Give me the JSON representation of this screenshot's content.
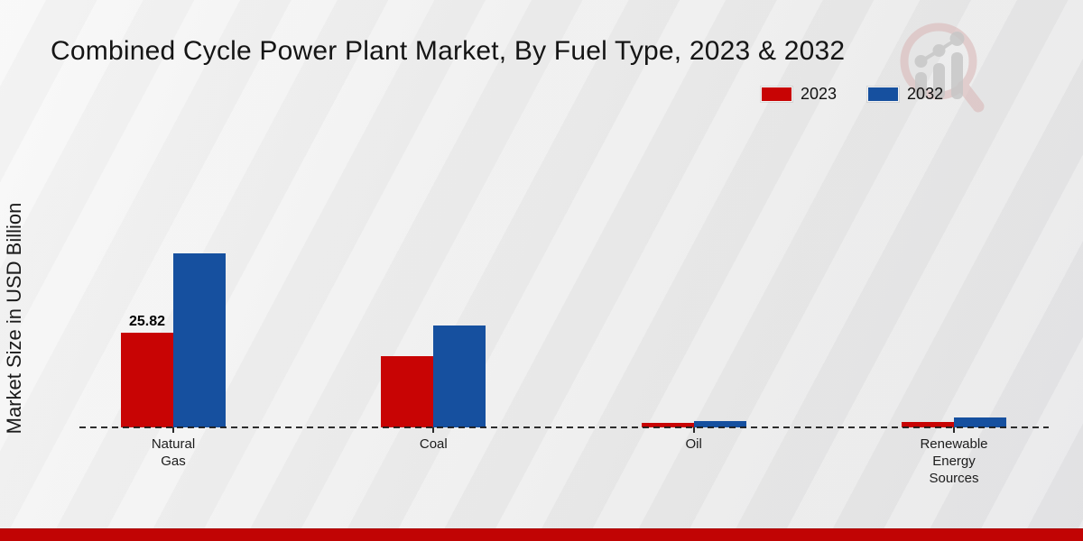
{
  "title": "Combined Cycle Power Plant Market, By Fuel Type, 2023 & 2032",
  "ylabel": "Market Size in USD Billion",
  "legend": [
    {
      "label": "2023",
      "color": "#c80404"
    },
    {
      "label": "2032",
      "color": "#16509f"
    }
  ],
  "colors": {
    "series_2023": "#c80404",
    "series_2032": "#16509f",
    "footer_bar": "#c10404",
    "baseline": "#1c1c1c",
    "background": "#ebebeb"
  },
  "icons": {
    "watermark": "magnifier-bar-chart-logo"
  },
  "chart_data": {
    "type": "bar",
    "categories": [
      "Natural Gas",
      "Coal",
      "Oil",
      "Renewable Energy Sources"
    ],
    "category_label_lines": [
      [
        "Natural",
        "Gas"
      ],
      [
        "Coal"
      ],
      [
        "Oil"
      ],
      [
        "Renewable",
        "Energy",
        "Sources"
      ]
    ],
    "series": [
      {
        "name": "2023",
        "color": "#c80404",
        "values": [
          25.82,
          19.4,
          1.2,
          1.5
        ]
      },
      {
        "name": "2032",
        "color": "#16509f",
        "values": [
          47.5,
          27.8,
          1.6,
          2.8
        ]
      }
    ],
    "data_labels": [
      {
        "series": "2023",
        "category": "Natural Gas",
        "text": "25.82"
      }
    ],
    "title": "Combined Cycle Power Plant Market, By Fuel Type, 2023 & 2032",
    "xlabel": "",
    "ylabel": "Market Size in USD Billion",
    "ylim": [
      0,
      50
    ],
    "grid": false,
    "axis_style": "dashed-baseline-only",
    "legend_position": "top-right"
  }
}
